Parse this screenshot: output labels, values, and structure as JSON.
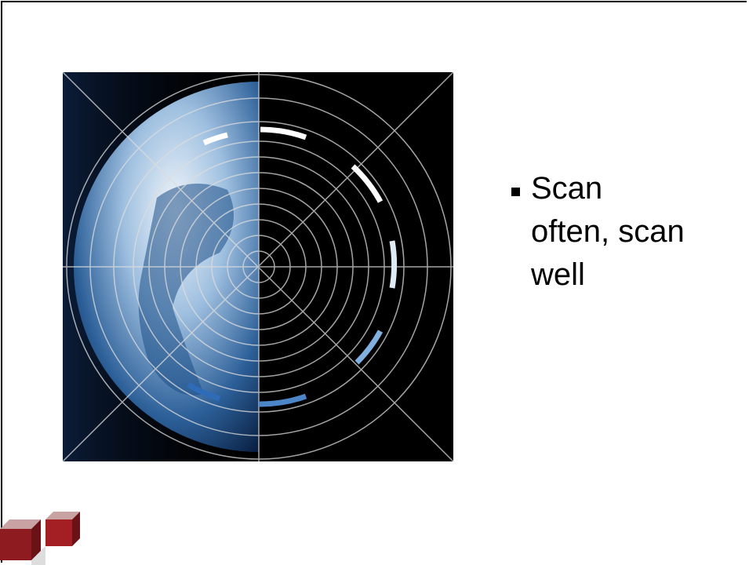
{
  "slide": {
    "bullets": [
      "Scan often, scan well"
    ]
  }
}
